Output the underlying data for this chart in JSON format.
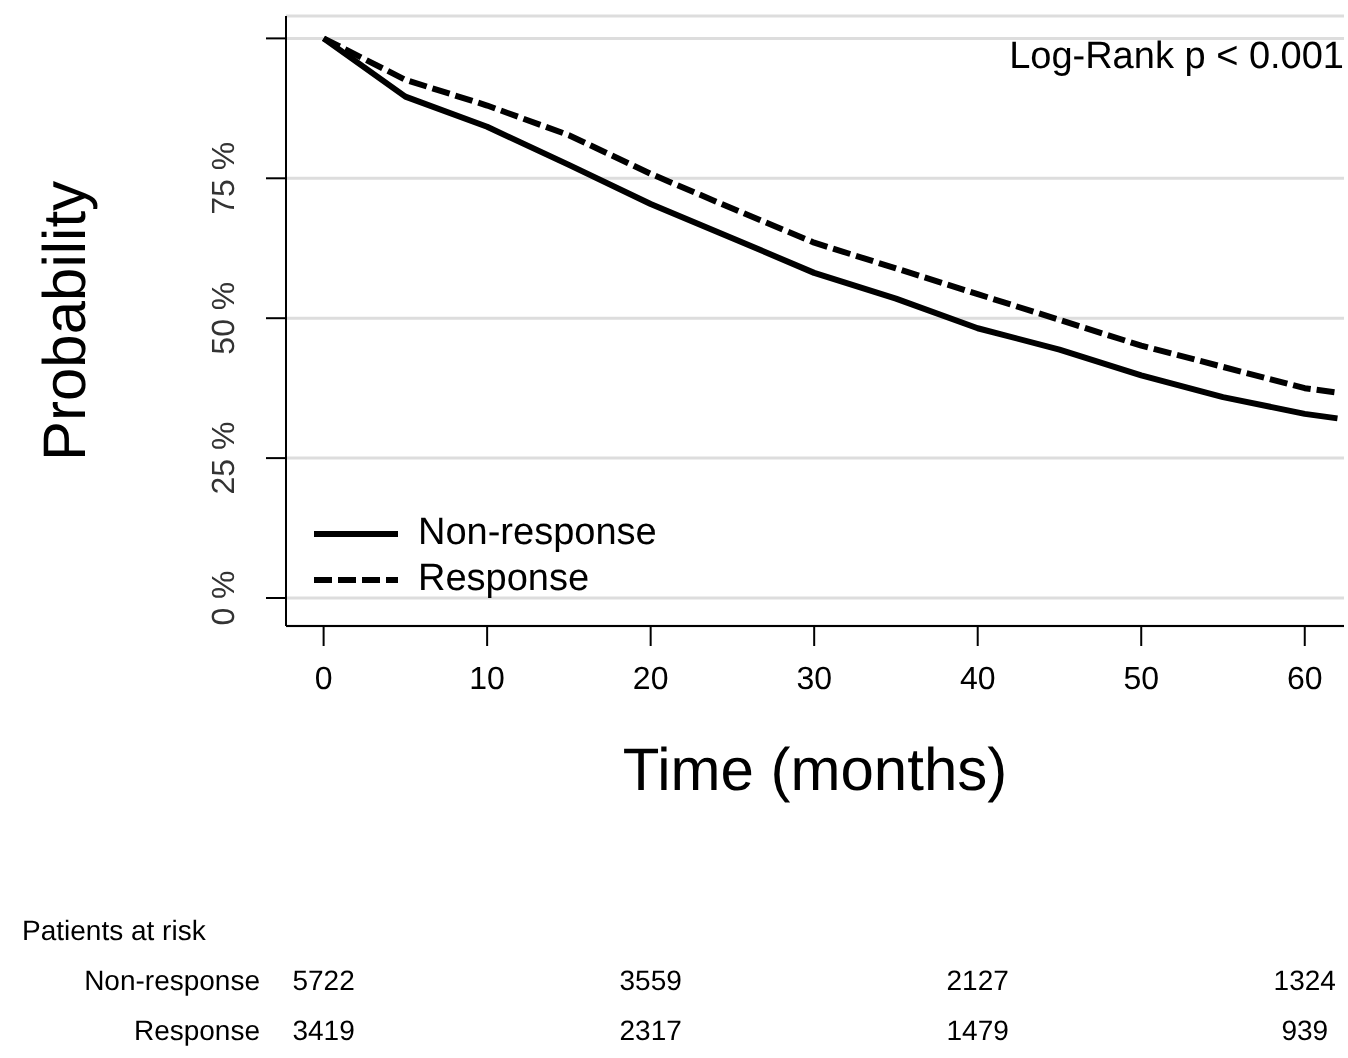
{
  "chart_data": {
    "type": "line",
    "xlabel": "Time (months)",
    "ylabel": "Probability",
    "x": [
      0,
      5,
      10,
      15,
      20,
      25,
      30,
      35,
      40,
      45,
      50,
      55,
      60,
      62
    ],
    "series": [
      {
        "name": "Non-response",
        "color": "#000000",
        "line_style": "solid",
        "values": [
          100,
          89.6,
          84.2,
          77.4,
          70.4,
          64.3,
          58.1,
          53.5,
          48.2,
          44.4,
          39.8,
          35.9,
          32.9,
          32.1
        ]
      },
      {
        "name": "Response",
        "color": "#000000",
        "line_style": "dashed",
        "values": [
          100,
          92.6,
          88.0,
          82.7,
          75.8,
          69.6,
          63.5,
          58.9,
          54.3,
          49.7,
          45.1,
          41.3,
          37.5,
          36.7
        ]
      }
    ],
    "xlim": [
      -2.3,
      62.4
    ],
    "xticks": [
      0,
      10,
      20,
      30,
      40,
      50,
      60
    ],
    "ylim": [
      -5,
      104
    ],
    "yticks": [
      {
        "value": 0,
        "label": "0 %"
      },
      {
        "value": 25,
        "label": "25 %"
      },
      {
        "value": 50,
        "label": "50 %"
      },
      {
        "value": 75,
        "label": "75 %"
      },
      {
        "value": 100,
        "label": null
      }
    ],
    "grid": "y",
    "legend": "bottom left",
    "marker": "none",
    "annotations": [
      "Log-Rank p < 0.001",
      "Patients at risk",
      "Non-response",
      "5722",
      "3559",
      "2127",
      "1324",
      "Response",
      "3419",
      "2317",
      "1479",
      "939"
    ]
  }
}
